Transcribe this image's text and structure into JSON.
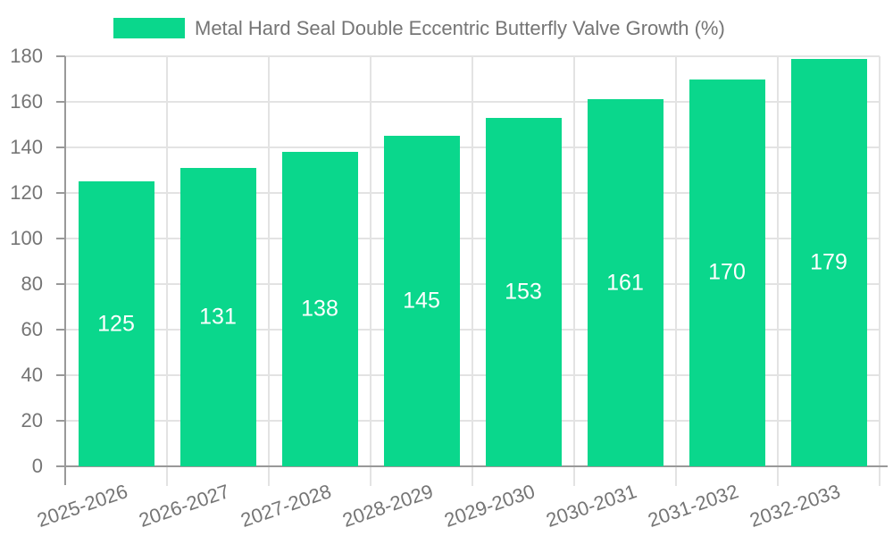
{
  "legend": {
    "label": "Metal Hard Seal Double Eccentric Butterfly Valve Growth (%)"
  },
  "chart_data": {
    "type": "bar",
    "title": "Metal Hard Seal Double Eccentric Butterfly Valve Growth (%)",
    "categories": [
      "2025-2026",
      "2026-2027",
      "2027-2028",
      "2028-2029",
      "2029-2030",
      "2030-2031",
      "2031-2032",
      "2032-2033"
    ],
    "values": [
      125,
      131,
      138,
      145,
      153,
      161,
      170,
      179
    ],
    "xlabel": "",
    "ylabel": "",
    "ylim": [
      0,
      180
    ],
    "yticks": [
      0,
      20,
      40,
      60,
      80,
      100,
      120,
      140,
      160,
      180
    ],
    "grid": true,
    "legend_position": "top",
    "bar_color": "#0ad78c",
    "value_label_color": "#ffffff",
    "colors": {
      "axis": "#999999",
      "grid": "#e3e3e3",
      "tick_label": "#757575",
      "title_text": "#757575",
      "background": "#ffffff"
    }
  }
}
